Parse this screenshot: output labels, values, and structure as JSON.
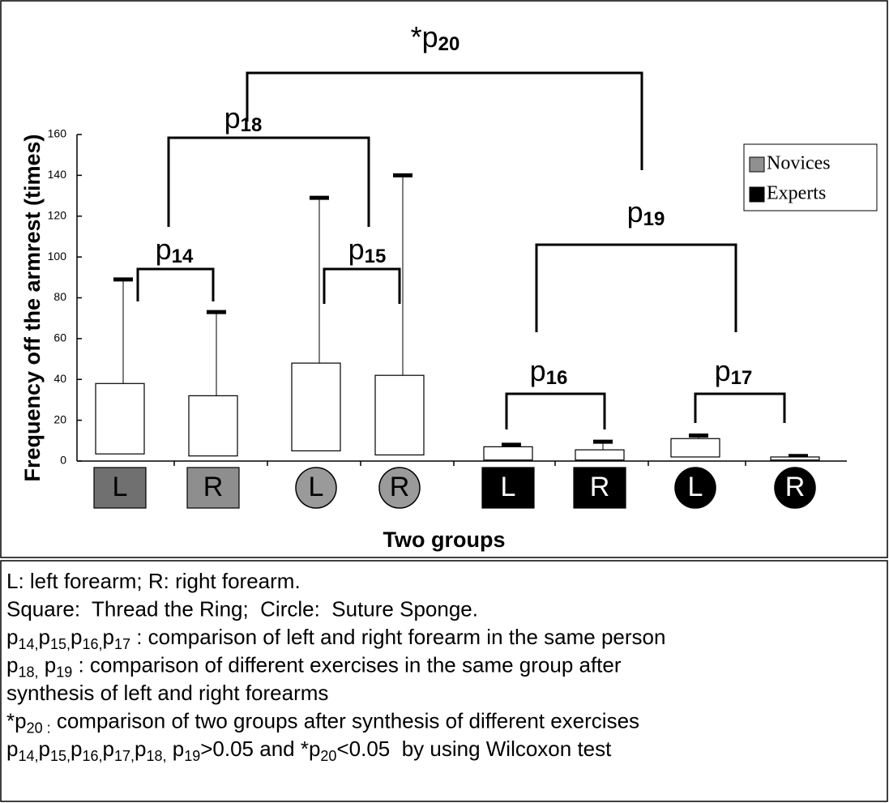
{
  "chart_data": {
    "type": "box",
    "categories": [
      "L",
      "R",
      "L",
      "R",
      "L",
      "R",
      "L",
      "R"
    ],
    "marker_shapes": [
      "square",
      "square",
      "circle",
      "circle",
      "square",
      "square",
      "circle",
      "circle"
    ],
    "marker_colors": [
      "#707070",
      "#8e8e8e",
      "#9a9a9a",
      "#9a9a9a",
      "#000000",
      "#000000",
      "#000000",
      "#000000"
    ],
    "q1": [
      3.5,
      2.5,
      5,
      3,
      0.5,
      0.5,
      2,
      0.5
    ],
    "q3": [
      38,
      32,
      48,
      42,
      7,
      5.5,
      11,
      2
    ],
    "whisker_max": [
      89,
      73,
      129,
      140,
      8,
      9.5,
      12.5,
      2.5
    ],
    "ylim": [
      0,
      160
    ],
    "yticks": [
      0,
      20,
      40,
      60,
      80,
      100,
      120,
      140,
      160
    ],
    "y_label": "Frequency off the armrest (times)",
    "x_label": "Two groups",
    "series": [
      {
        "name": "Novices",
        "color": "#909090"
      },
      {
        "name": "Experts",
        "color": "#000000"
      }
    ],
    "legend": "upper right",
    "annotations": [
      {
        "text": "p",
        "sub": "14"
      },
      {
        "text": "p",
        "sub": "15"
      },
      {
        "text": "p",
        "sub": "16"
      },
      {
        "text": "p",
        "sub": "17"
      },
      {
        "text": "p",
        "sub": "18"
      },
      {
        "text": "p",
        "sub": "19"
      },
      {
        "text": "*p",
        "sub": "20"
      }
    ]
  },
  "notes": [
    [
      {
        "text": "L: left forearm; R: right forearm."
      }
    ],
    [
      {
        "text": "Square:  Thread the Ring;  Circle:  Suture Sponge."
      }
    ],
    [
      {
        "text": "p"
      },
      {
        "sub": "14,"
      },
      {
        "text": "p"
      },
      {
        "sub": "15,"
      },
      {
        "text": "p"
      },
      {
        "sub": "16,"
      },
      {
        "text": "p"
      },
      {
        "sub": "17"
      },
      {
        "text": " : comparison of left and right forearm in the same person"
      }
    ],
    [
      {
        "text": "p"
      },
      {
        "sub": "18,"
      },
      {
        "text": " p"
      },
      {
        "sub": "19"
      },
      {
        "text": " : comparison of different exercises in the same group after"
      }
    ],
    [
      {
        "text": "synthesis of left and right forearms"
      }
    ],
    [
      {
        "text": "*p"
      },
      {
        "sub": "20 :"
      },
      {
        "text": " comparison of two groups after synthesis of different exercises"
      }
    ],
    [
      {
        "text": "p"
      },
      {
        "sub": "14,"
      },
      {
        "text": "p"
      },
      {
        "sub": "15,"
      },
      {
        "text": "p"
      },
      {
        "sub": "16,"
      },
      {
        "text": "p"
      },
      {
        "sub": "17,"
      },
      {
        "text": "p"
      },
      {
        "sub": "18,"
      },
      {
        "text": " p"
      },
      {
        "sub": "19"
      },
      {
        "text": ">0.05 and *p"
      },
      {
        "sub": "20"
      },
      {
        "text": "<0.05  by using Wilcoxon test"
      }
    ]
  ]
}
